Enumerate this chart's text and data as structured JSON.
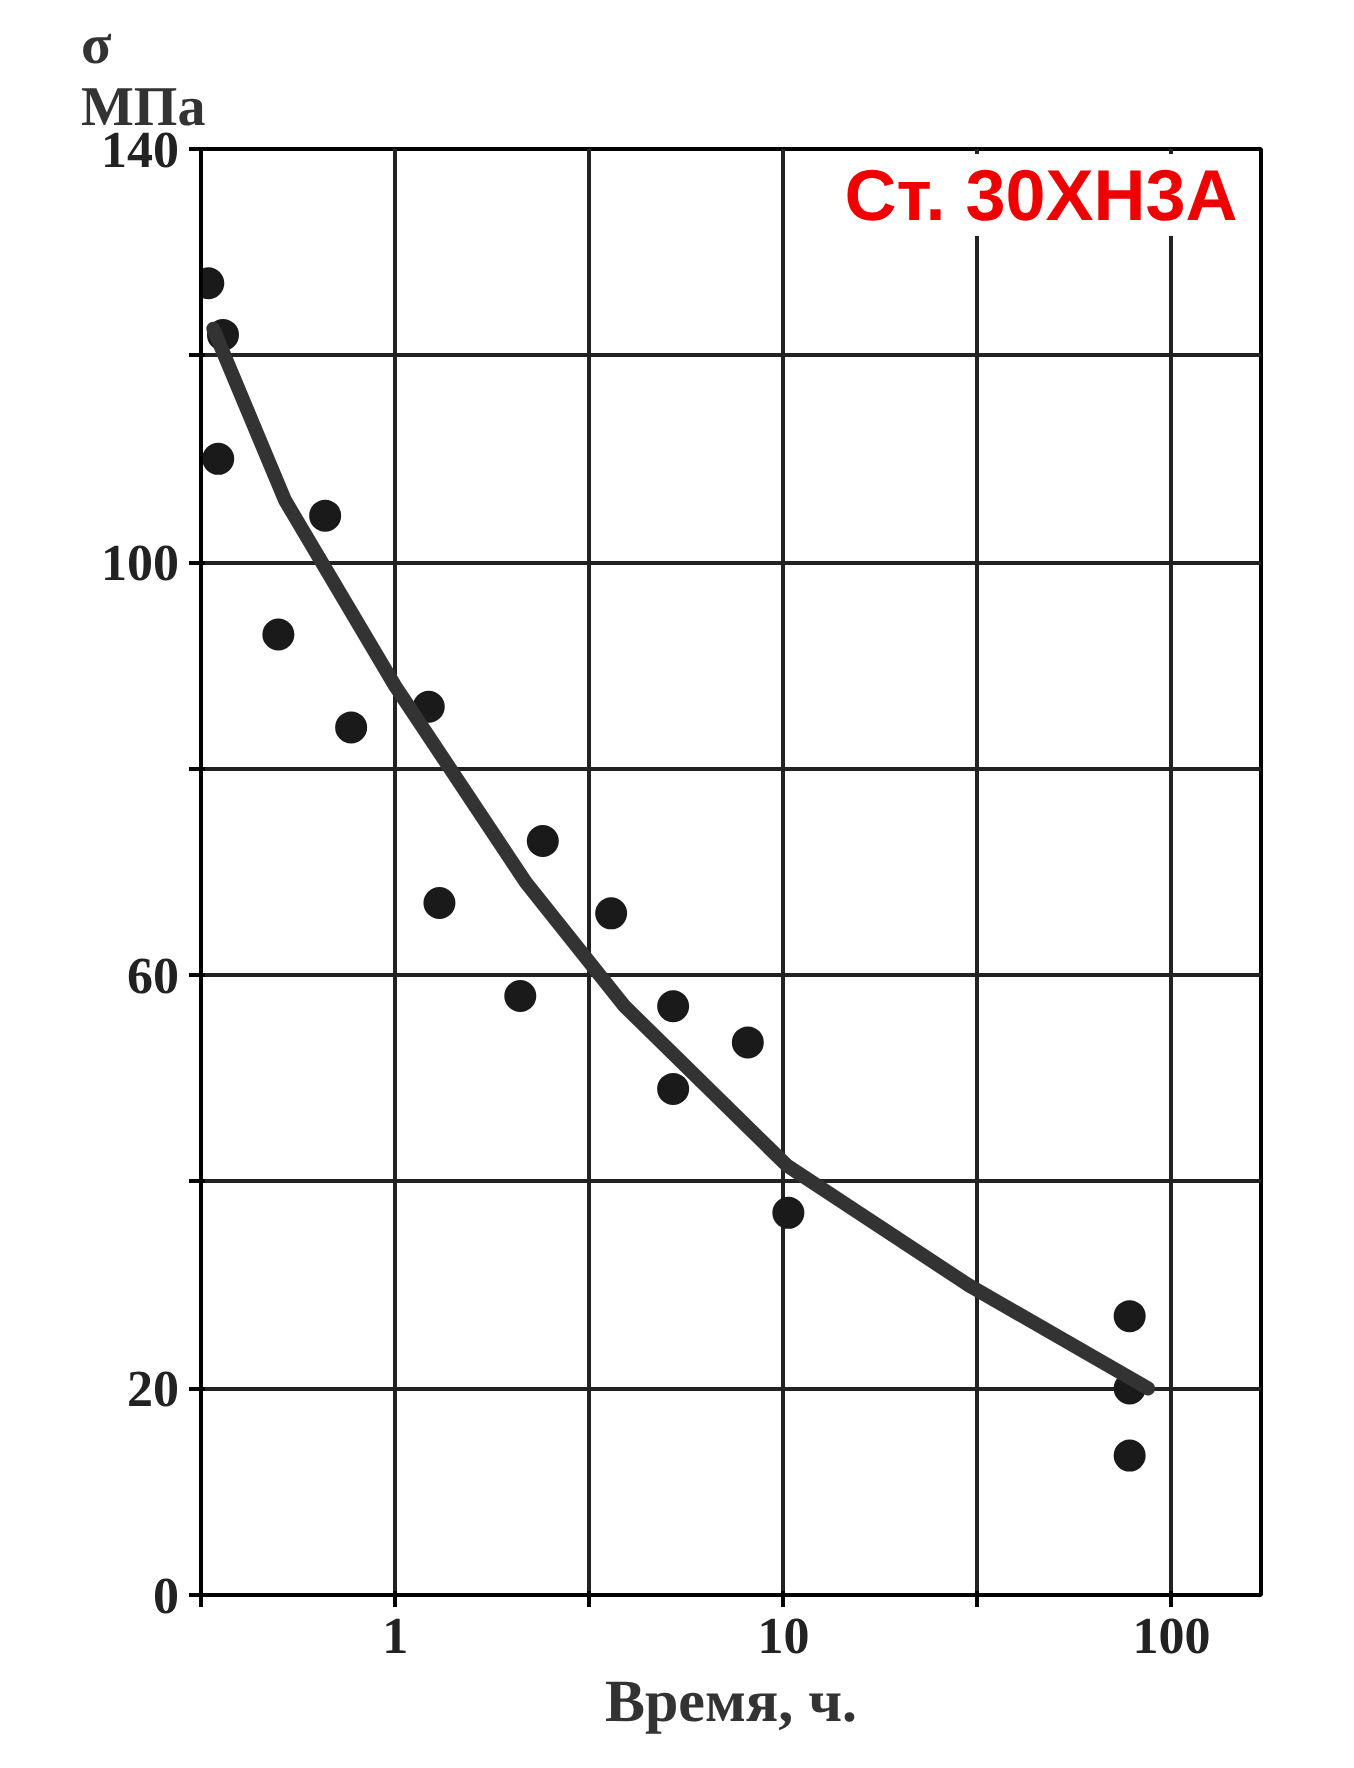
{
  "chart_data": {
    "type": "scatter",
    "title": "Ст. 30ХН3А",
    "xlabel": "Время, ч.",
    "ylabel": "σ\nМПа",
    "log": "x",
    "grid": true,
    "marker": "circle",
    "xlim": [
      0.316,
      170
    ],
    "xticks": [
      {
        "value": 0.316,
        "label": null
      },
      1,
      {
        "value": 3.16,
        "label": null
      },
      10,
      {
        "value": 31.6,
        "label": null
      },
      100
    ],
    "ylim": [
      0,
      140
    ],
    "yticks": [
      0,
      20,
      {
        "value": 40,
        "label": null
      },
      60,
      {
        "value": 80,
        "label": null
      },
      100,
      {
        "value": 120,
        "label": null
      },
      140
    ],
    "series": [
      {
        "color": "#1a1a1a",
        "x": [
          0.33,
          0.36,
          0.35,
          0.66,
          0.5,
          0.77,
          1.22,
          1.3,
          2.1,
          2.4,
          3.6,
          5.2,
          5.2,
          8.1,
          10.3,
          78,
          78,
          78
        ],
        "values": [
          127,
          122,
          110,
          104.5,
          93,
          84,
          86,
          67,
          58,
          73,
          66,
          57,
          49,
          53.5,
          37,
          27,
          20,
          13.5
        ]
      },
      {
        "type": "line",
        "marker": "none",
        "color": "#333333",
        "x": [
          0.34,
          0.52,
          1,
          2.17,
          3.9,
          10.2,
          30,
          87
        ],
        "values": [
          122.6,
          106,
          88,
          69,
          57,
          41.6,
          30,
          20
        ]
      }
    ]
  }
}
